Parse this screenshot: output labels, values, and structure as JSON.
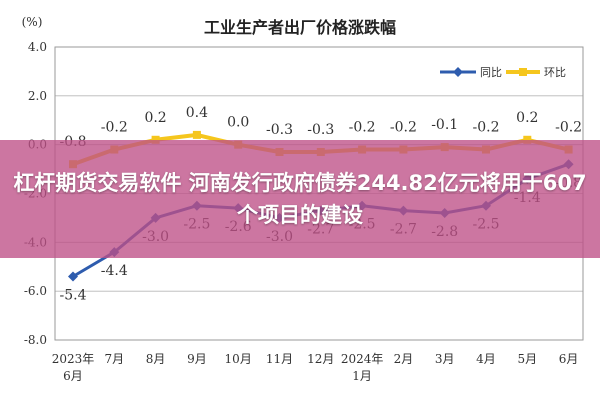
{
  "chart_data": {
    "type": "line",
    "title": "工业生产者出厂价格涨跌幅",
    "ylabel": "(%)",
    "ylim": [
      -8.0,
      4.0
    ],
    "yticks": [
      "4.0",
      "2.0",
      "0.0",
      "-2.0",
      "-4.0",
      "-6.0",
      "-8.0"
    ],
    "grid": true,
    "legend_position": "top-right",
    "categories": [
      "2023年\n6月",
      "7月",
      "8月",
      "9月",
      "10月",
      "11月",
      "12月",
      "2024年\n1月",
      "2月",
      "3月",
      "4月",
      "5月",
      "6月"
    ],
    "series": [
      {
        "name": "同比",
        "color": "#2e5cae",
        "values": [
          -5.4,
          -4.4,
          -3.0,
          -2.5,
          -2.6,
          -3.0,
          -2.7,
          -2.5,
          -2.7,
          -2.8,
          -2.5,
          -1.4,
          -0.8
        ],
        "labels": [
          "-5.4",
          "-4.4",
          "-3.0",
          "-2.5",
          "-2.6",
          "-3.0",
          "-2.7",
          "-2.5",
          "-2.7",
          "-2.8",
          "-2.5",
          "-1.4",
          "-0.8"
        ]
      },
      {
        "name": "环比",
        "color": "#f5c61d",
        "values": [
          -0.8,
          -0.2,
          0.2,
          0.4,
          0.0,
          -0.3,
          -0.3,
          -0.2,
          -0.2,
          -0.1,
          -0.2,
          0.2,
          -0.2
        ],
        "labels": [
          "-0.8",
          "-0.2",
          "0.2",
          "0.4",
          "0.0",
          "-0.3",
          "-0.3",
          "-0.2",
          "-0.2",
          "-0.1",
          "-0.2",
          "0.2",
          "-0.2"
        ]
      }
    ]
  },
  "banner": {
    "title": "杠杆期货交易软件 河南发行政府债券244.82亿元将用于607个项目的建设"
  }
}
